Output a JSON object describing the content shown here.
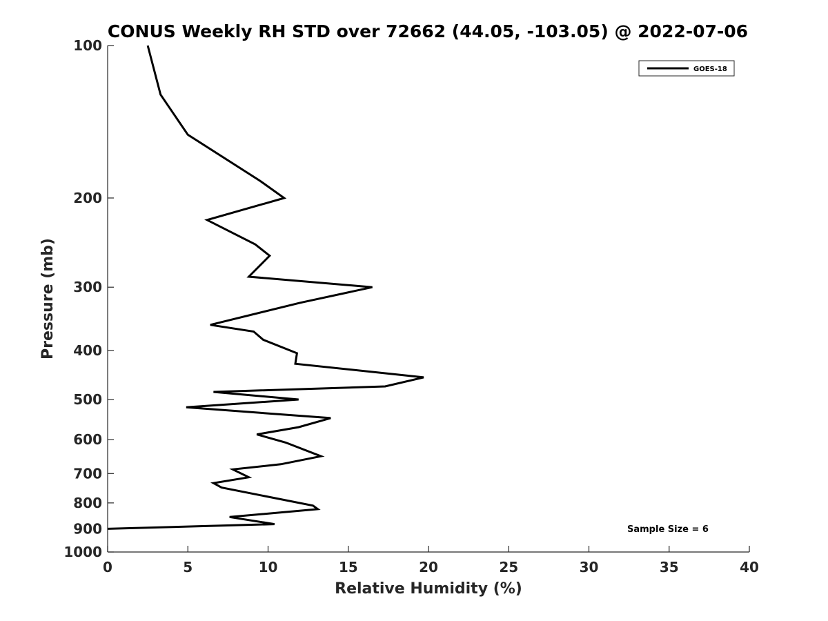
{
  "chart_data": {
    "type": "line",
    "title": "CONUS Weekly RH STD over 72662 (44.05, -103.05) @ 2022-07-06",
    "xlabel": "Relative Humidity (%)",
    "ylabel": "Pressure (mb)",
    "xlim": [
      0,
      40
    ],
    "ylim": [
      100,
      1000
    ],
    "yscale": "log",
    "y_inverted": true,
    "grid": false,
    "legend_position": "top-right",
    "x_ticks": [
      "0",
      "5",
      "10",
      "15",
      "20",
      "25",
      "30",
      "35",
      "40"
    ],
    "y_ticks": [
      "100",
      "200",
      "300",
      "400",
      "500",
      "600",
      "700",
      "800",
      "900",
      "1000"
    ],
    "annotation": "Sample Size = 6",
    "series": [
      {
        "name": "GOES-18",
        "color": "#000000",
        "x": [
          2.5,
          3.3,
          5.0,
          9.5,
          11.0,
          6.2,
          9.2,
          10.1,
          8.8,
          16.5,
          12.0,
          6.4,
          9.1,
          9.7,
          11.8,
          11.7,
          19.7,
          17.3,
          6.6,
          11.9,
          4.9,
          13.9,
          11.9,
          9.3,
          11.1,
          13.3,
          10.8,
          7.8,
          8.8,
          6.6,
          7.1,
          12.8,
          13.1,
          7.6,
          10.4,
          0.0
        ],
        "y": [
          100,
          125,
          150,
          185,
          200,
          221,
          247,
          260,
          286,
          300,
          322,
          356,
          367,
          381,
          405,
          425,
          452,
          471,
          483,
          500,
          518,
          544,
          567,
          586,
          608,
          647,
          671,
          687,
          712,
          731,
          746,
          810,
          823,
          853,
          881,
          900
        ]
      }
    ]
  }
}
